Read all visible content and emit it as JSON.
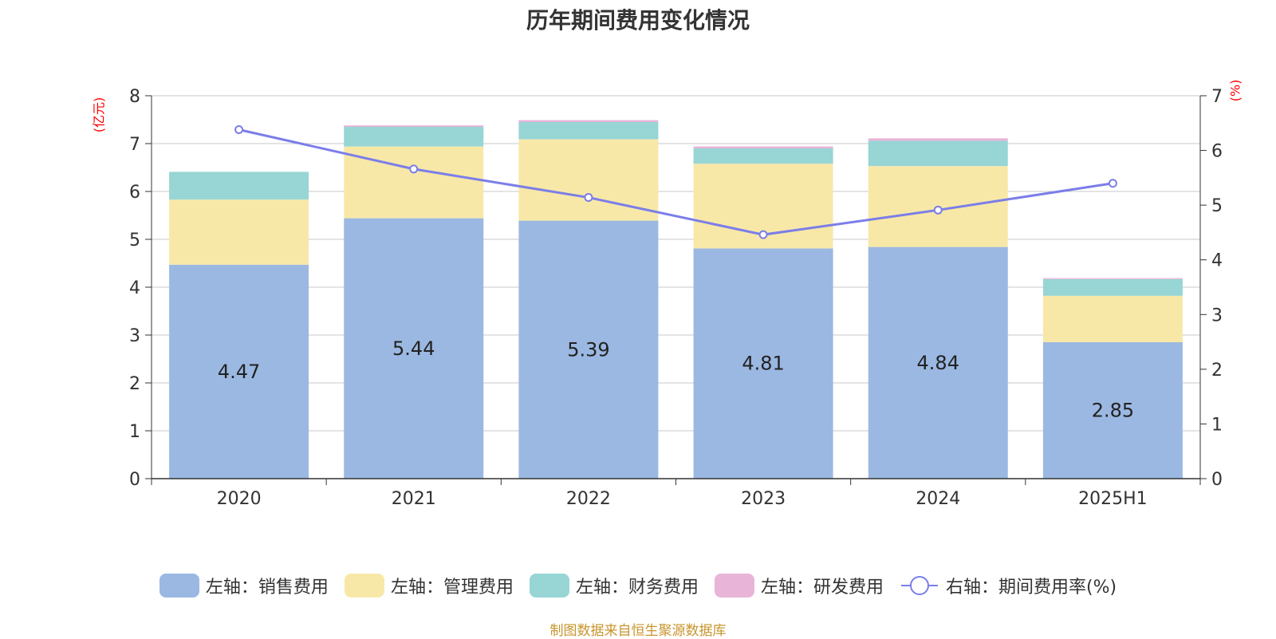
{
  "title": "历年期间费用变化情况",
  "left_unit": "(亿元)",
  "right_unit": "(%)",
  "source": "制图数据来自恒生聚源数据库",
  "colors": {
    "sales": "#9bb8e2",
    "mgmt": "#f8e8a8",
    "finance": "#98d5d5",
    "rnd": "#e8b4d8",
    "rate": "#7b7ee8",
    "axis_text": "#333333",
    "grid": "#c8c8c8"
  },
  "legend": [
    {
      "label": "左轴：销售费用",
      "key": "sales",
      "type": "box"
    },
    {
      "label": "左轴：管理费用",
      "key": "mgmt",
      "type": "box"
    },
    {
      "label": "左轴：财务费用",
      "key": "finance",
      "type": "box"
    },
    {
      "label": "左轴：研发费用",
      "key": "rnd",
      "type": "box"
    },
    {
      "label": "右轴：期间费用率(%)",
      "key": "rate",
      "type": "line"
    }
  ],
  "chart_data": {
    "type": "bar",
    "stacked": true,
    "categories": [
      "2020",
      "2021",
      "2022",
      "2023",
      "2024",
      "2025H1"
    ],
    "series": [
      {
        "name": "左轴：销售费用",
        "key": "sales",
        "axis": "left",
        "values": [
          4.47,
          5.44,
          5.39,
          4.81,
          4.84,
          2.85
        ],
        "labels": [
          "4.47",
          "5.44",
          "5.39",
          "4.81",
          "4.84",
          "2.85"
        ]
      },
      {
        "name": "左轴：管理费用",
        "key": "mgmt",
        "axis": "left",
        "values": [
          1.36,
          1.5,
          1.7,
          1.77,
          1.69,
          0.97
        ]
      },
      {
        "name": "左轴：财务费用",
        "key": "finance",
        "axis": "left",
        "values": [
          0.58,
          0.41,
          0.36,
          0.32,
          0.53,
          0.35
        ]
      },
      {
        "name": "左轴：研发费用",
        "key": "rnd",
        "axis": "left",
        "values": [
          0.0,
          0.03,
          0.04,
          0.04,
          0.05,
          0.02
        ]
      },
      {
        "name": "右轴：期间费用率(%)",
        "key": "rate",
        "axis": "right",
        "type": "line",
        "values": [
          6.38,
          5.66,
          5.14,
          4.46,
          4.91,
          5.4
        ]
      }
    ],
    "left_axis": {
      "ylim": [
        0,
        8
      ],
      "ticks": [
        "0",
        "1",
        "2",
        "3",
        "4",
        "5",
        "6",
        "7",
        "8"
      ]
    },
    "right_axis": {
      "ylim": [
        0,
        7
      ],
      "ticks": [
        "0",
        "1",
        "2",
        "3",
        "4",
        "5",
        "6",
        "7"
      ]
    },
    "grid": true,
    "legend_position": "bottom"
  }
}
